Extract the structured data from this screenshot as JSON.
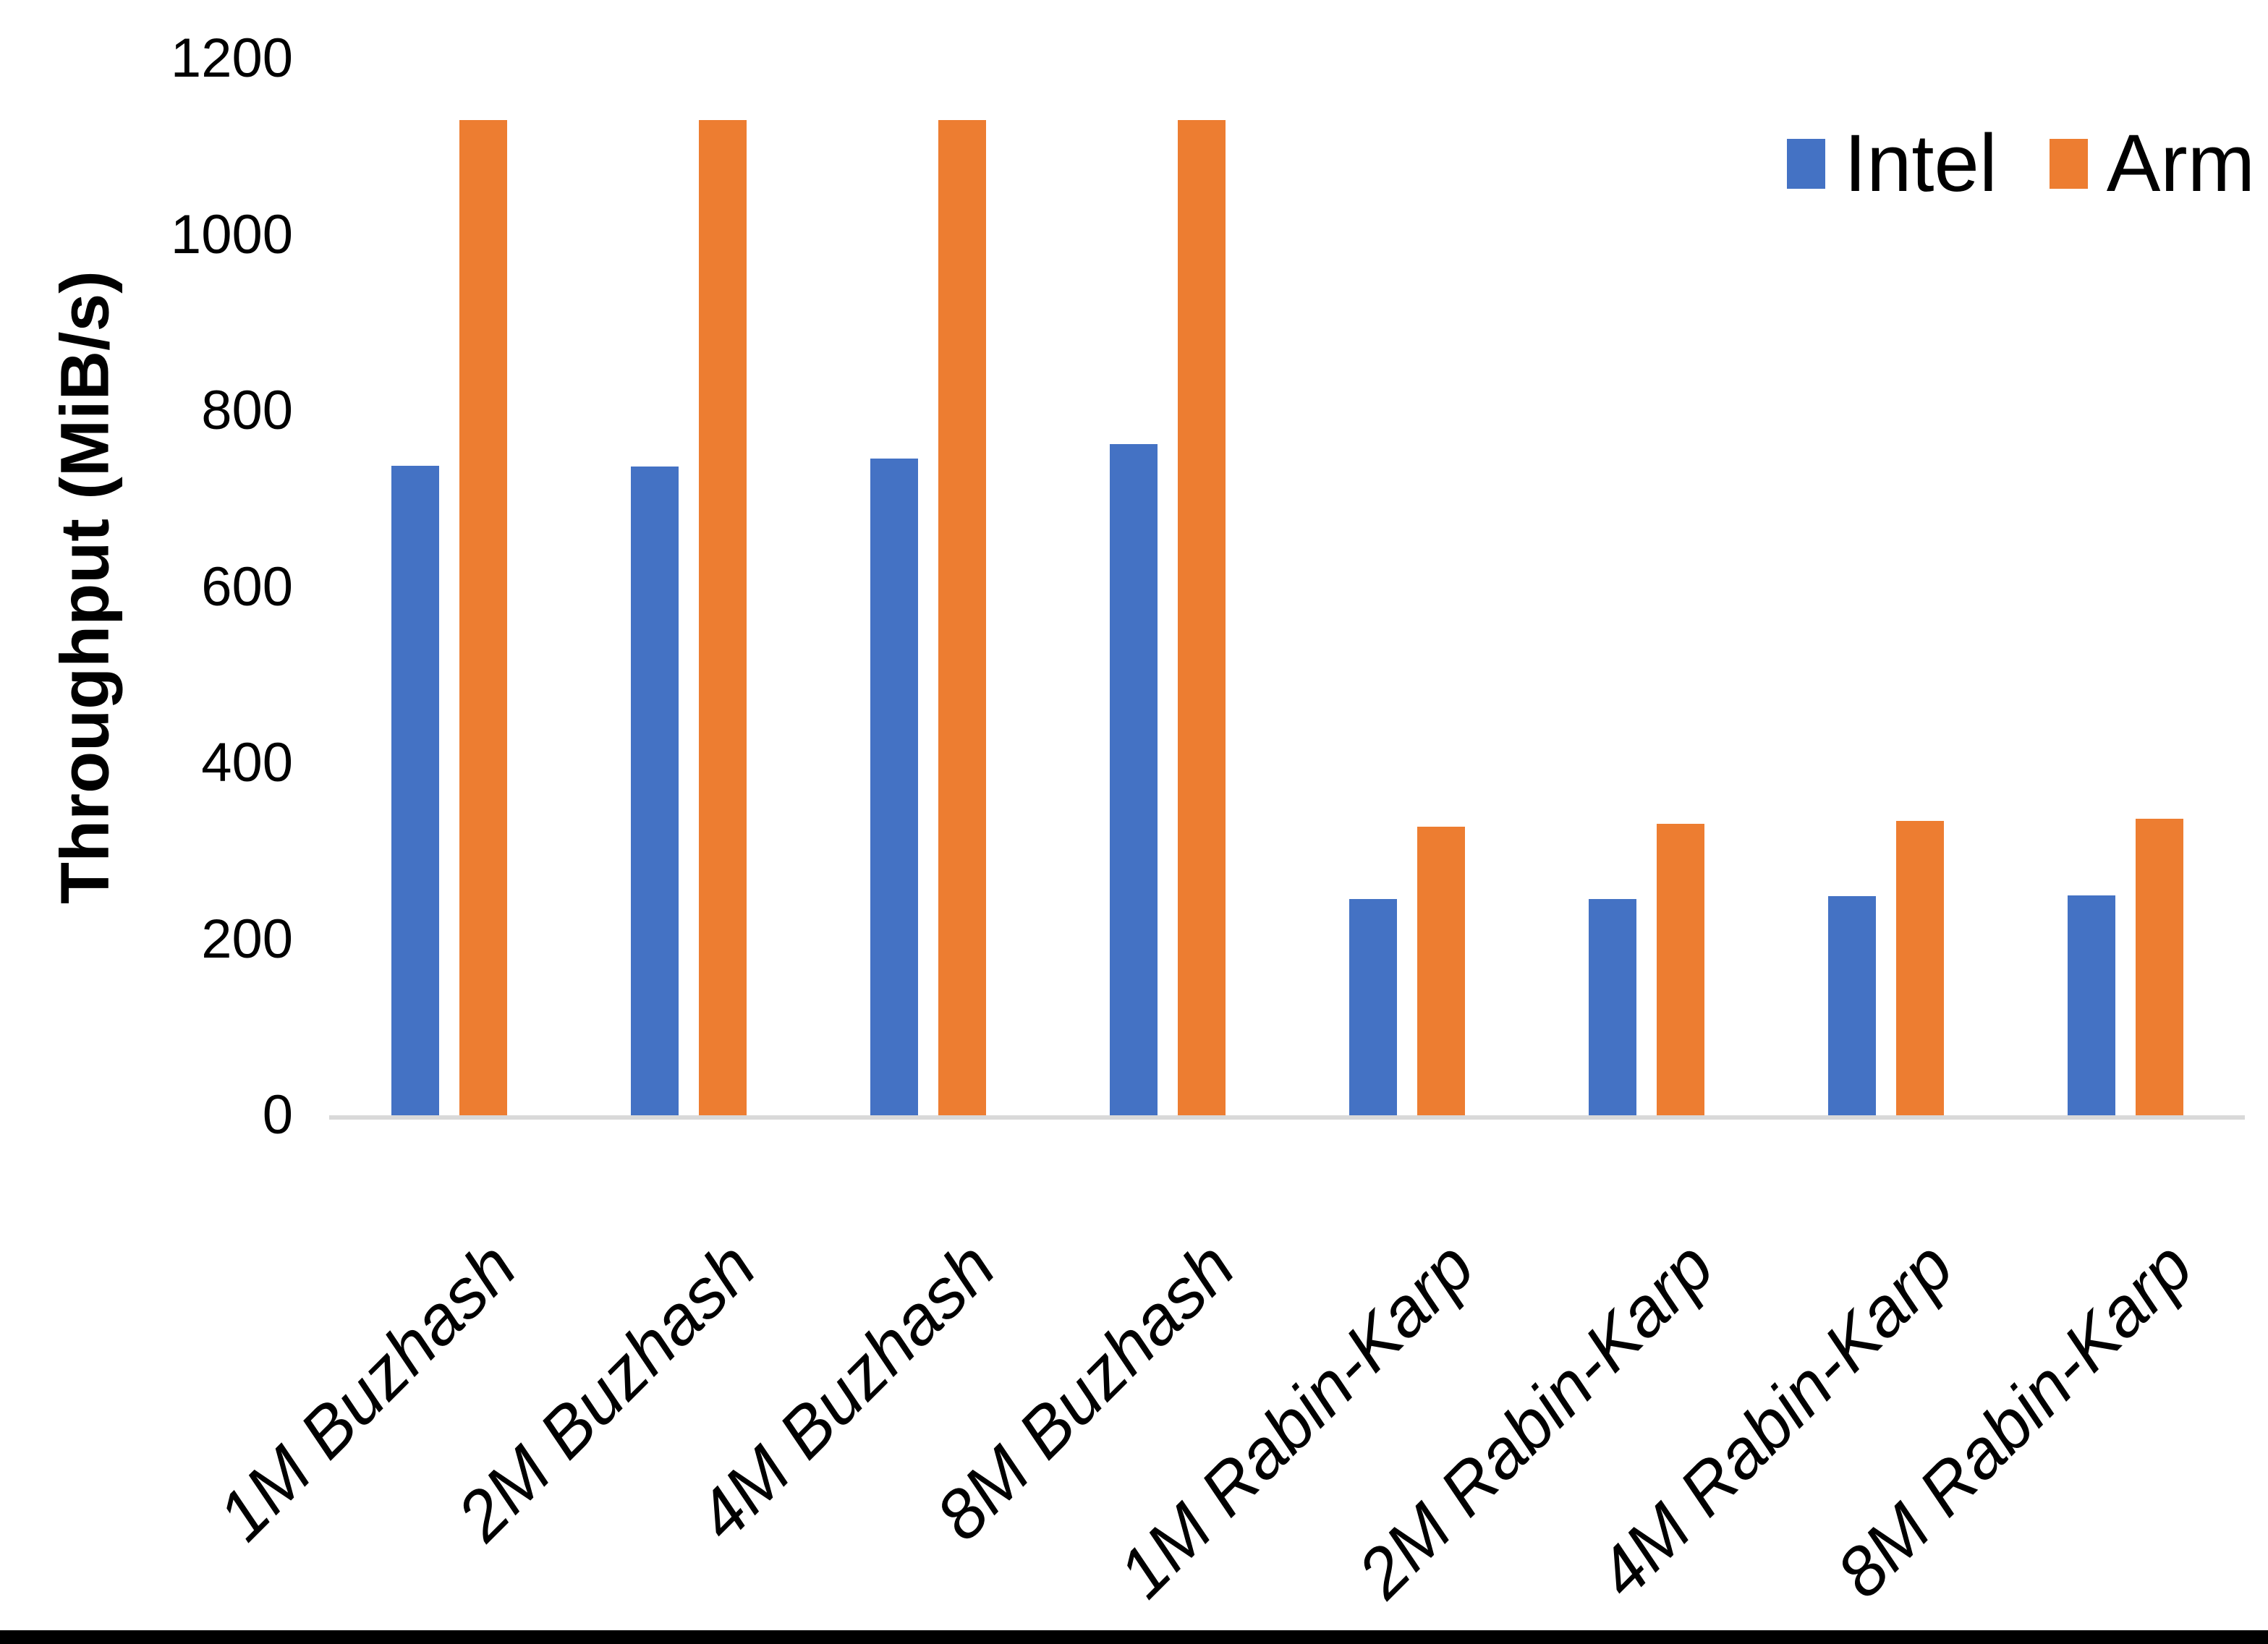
{
  "chart_data": {
    "type": "bar",
    "title": "",
    "xlabel": "",
    "ylabel": "Throughput (MiB/s)",
    "ylim": [
      0,
      1200
    ],
    "yticks": [
      0,
      200,
      400,
      600,
      800,
      1000,
      1200
    ],
    "grid": false,
    "legend_position": "top-right",
    "categories": [
      "1M Buzhash",
      "2M Buzhash",
      "4M Buzhash",
      "8M Buzhash",
      "1M Rabin-Karp",
      "2M Rabin-Karp",
      "4M Rabin-Karp",
      "8M Rabin-Karp"
    ],
    "series": [
      {
        "name": "Intel",
        "color": "#4472C4",
        "values": [
          738,
          737,
          746,
          762,
          246,
          246,
          249,
          250
        ]
      },
      {
        "name": "Arm",
        "color": "#ED7D31",
        "values": [
          1130,
          1130,
          1130,
          1130,
          328,
          331,
          334,
          337
        ]
      }
    ],
    "colors": {
      "axis_line": "#D9D9D9",
      "text": "#000000",
      "background": "#FFFFFF"
    }
  }
}
